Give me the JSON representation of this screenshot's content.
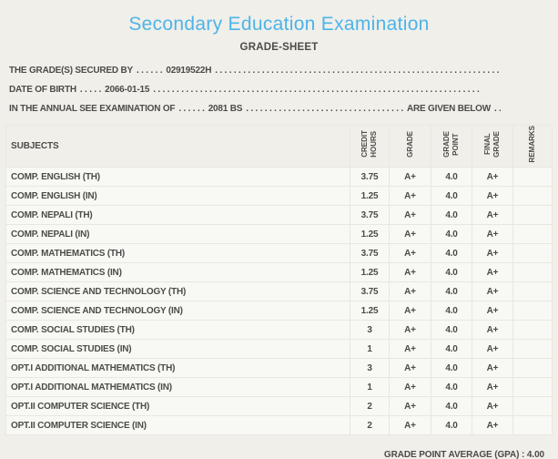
{
  "page": {
    "title": "Secondary Education Examination",
    "subtitle": "GRADE-SHEET"
  },
  "info_lines": [
    {
      "label": "THE GRADE(S) SECURED BY",
      "leader": ". . . . . .",
      "value": "02919522H",
      "trailer": ". . . . . . . . . . . . . . . . . . . . . . . . . . . . . . . . . . . . . . . . . . . . . . . . . . . . . . . . . . . . . . . . . . . . . ."
    },
    {
      "label": "DATE OF BIRTH",
      "leader": ". . . . .",
      "value": "2066-01-15",
      "trailer": ". . . . . . . . . . . . . . . . . . . . . . . . . . . . . . . . . . . . . . . . . . . . . . . . . . . . . . . . . . . . . . . . . . . . . ."
    },
    {
      "label": "IN THE ANNUAL SEE EXAMINATION OF",
      "leader": ". . . . . .",
      "value": "2081 BS",
      "trailer": ". . . . . . . . . . . . . . . . . . . . . . . . . . . . . . . . . .",
      "suffix": "ARE GIVEN BELOW",
      "suffix_trailer": ". . ."
    }
  ],
  "table": {
    "columns": [
      "SUBJECTS",
      "CREDIT HOURS",
      "GRADE",
      "GRADE POINT",
      "FINAL GRADE",
      "REMARKS"
    ],
    "rows": [
      {
        "subject": "COMP. ENGLISH (TH)",
        "credit_hours": "3.75",
        "grade": "A+",
        "grade_point": "4.0",
        "final_grade": "A+",
        "remarks": ""
      },
      {
        "subject": "COMP. ENGLISH (IN)",
        "credit_hours": "1.25",
        "grade": "A+",
        "grade_point": "4.0",
        "final_grade": "A+",
        "remarks": ""
      },
      {
        "subject": "COMP. NEPALI (TH)",
        "credit_hours": "3.75",
        "grade": "A+",
        "grade_point": "4.0",
        "final_grade": "A+",
        "remarks": ""
      },
      {
        "subject": "COMP. NEPALI (IN)",
        "credit_hours": "1.25",
        "grade": "A+",
        "grade_point": "4.0",
        "final_grade": "A+",
        "remarks": ""
      },
      {
        "subject": "COMP. MATHEMATICS (TH)",
        "credit_hours": "3.75",
        "grade": "A+",
        "grade_point": "4.0",
        "final_grade": "A+",
        "remarks": ""
      },
      {
        "subject": "COMP. MATHEMATICS (IN)",
        "credit_hours": "1.25",
        "grade": "A+",
        "grade_point": "4.0",
        "final_grade": "A+",
        "remarks": ""
      },
      {
        "subject": "COMP. SCIENCE AND TECHNOLOGY (TH)",
        "credit_hours": "3.75",
        "grade": "A+",
        "grade_point": "4.0",
        "final_grade": "A+",
        "remarks": ""
      },
      {
        "subject": "COMP. SCIENCE AND TECHNOLOGY (IN)",
        "credit_hours": "1.25",
        "grade": "A+",
        "grade_point": "4.0",
        "final_grade": "A+",
        "remarks": ""
      },
      {
        "subject": "COMP. SOCIAL STUDIES (TH)",
        "credit_hours": "3",
        "grade": "A+",
        "grade_point": "4.0",
        "final_grade": "A+",
        "remarks": ""
      },
      {
        "subject": "COMP. SOCIAL STUDIES (IN)",
        "credit_hours": "1",
        "grade": "A+",
        "grade_point": "4.0",
        "final_grade": "A+",
        "remarks": ""
      },
      {
        "subject": "OPT.I ADDITIONAL MATHEMATICS (TH)",
        "credit_hours": "3",
        "grade": "A+",
        "grade_point": "4.0",
        "final_grade": "A+",
        "remarks": ""
      },
      {
        "subject": "OPT.I ADDITIONAL MATHEMATICS (IN)",
        "credit_hours": "1",
        "grade": "A+",
        "grade_point": "4.0",
        "final_grade": "A+",
        "remarks": ""
      },
      {
        "subject": "OPT.II COMPUTER SCIENCE (TH)",
        "credit_hours": "2",
        "grade": "A+",
        "grade_point": "4.0",
        "final_grade": "A+",
        "remarks": ""
      },
      {
        "subject": "OPT.II COMPUTER SCIENCE (IN)",
        "credit_hours": "2",
        "grade": "A+",
        "grade_point": "4.0",
        "final_grade": "A+",
        "remarks": ""
      }
    ]
  },
  "footer": {
    "gpa_text": "GRADE POINT AVERAGE (GPA) : 4.00"
  },
  "colors": {
    "accent": "#4DB4E8",
    "text": "#4C4B47",
    "page_bg": "#F0EFEA",
    "cell_bg": "#F8F8F5",
    "border": "#E8E7E1"
  }
}
